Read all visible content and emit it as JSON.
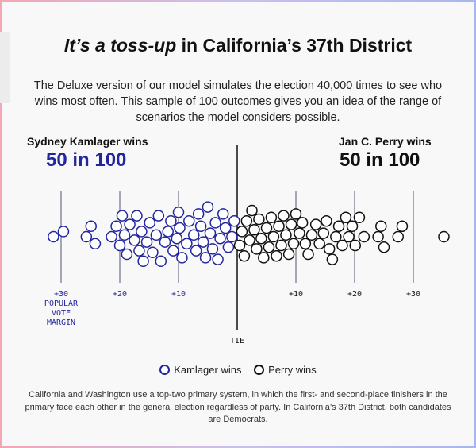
{
  "title_emph": "It’s a toss-up",
  "title_rest": " in California’s 37th District",
  "subtitle": "The Deluxe version of our model simulates the election 40,000 times to see who wins most often. This sample of 100 outcomes gives you an idea of the range of scenarios the model considers possible.",
  "left": {
    "label": "Sydney Kamlager wins",
    "count": "50 in 100"
  },
  "right": {
    "label": "Jan C. Perry wins",
    "count": "50 in 100"
  },
  "colors": {
    "kamlager": "#22279f",
    "perry": "#111111",
    "gridline": "#555577"
  },
  "legend": {
    "kamlager": "Kamlager wins",
    "perry": "Perry wins"
  },
  "footnote": "California and Washington use a top-two primary system, in which the first- and second-place finishers in the primary face each other in the general election regardless of party. In California’s 37th District, both candidates are Democrats.",
  "chart_data": {
    "type": "scatter",
    "title": "",
    "xlabel": "POPULAR VOTE MARGIN",
    "xlim": [
      -30,
      30
    ],
    "ticks": [
      {
        "value": -30,
        "label": "+30"
      },
      {
        "value": -20,
        "label": "+20"
      },
      {
        "value": -10,
        "label": "+10"
      },
      {
        "value": 10,
        "label": "+10"
      },
      {
        "value": 20,
        "label": "+20"
      },
      {
        "value": 30,
        "label": "+30"
      }
    ],
    "axis_title_lines": [
      "POPULAR",
      "VOTE",
      "MARGIN"
    ],
    "center_label": "TIE",
    "series": [
      {
        "name": "Kamlager wins",
        "values": [
          -31.3,
          -29.6,
          -25.7,
          -24.9,
          -24.2,
          -21.4,
          -20.6,
          -20.0,
          -19.6,
          -19.2,
          -18.8,
          -18.3,
          -17.5,
          -17.1,
          -16.7,
          -16.3,
          -16.0,
          -15.4,
          -14.9,
          -14.4,
          -13.8,
          -13.4,
          -13.0,
          -12.3,
          -11.8,
          -11.3,
          -10.9,
          -10.3,
          -10.0,
          -9.8,
          -9.4,
          -8.6,
          -8.2,
          -7.4,
          -7.0,
          -6.6,
          -6.2,
          -5.8,
          -5.4,
          -5.0,
          -4.6,
          -4.2,
          -3.7,
          -3.3,
          -2.9,
          -2.4,
          -2.0,
          -1.5,
          -0.9,
          -0.5
        ]
      },
      {
        "name": "Perry wins",
        "values": [
          0.4,
          0.8,
          1.2,
          1.6,
          2.1,
          2.5,
          2.9,
          3.3,
          3.7,
          4.1,
          4.5,
          5.0,
          5.4,
          5.8,
          6.2,
          6.7,
          7.1,
          7.5,
          7.9,
          8.3,
          8.8,
          9.2,
          9.6,
          10.0,
          10.6,
          11.1,
          11.6,
          12.1,
          12.7,
          13.4,
          14.0,
          14.7,
          15.2,
          15.7,
          16.2,
          16.8,
          17.3,
          17.9,
          18.5,
          19.0,
          19.6,
          20.1,
          20.8,
          21.6,
          24.0,
          24.5,
          25.0,
          27.4,
          28.1,
          35.2
        ]
      }
    ]
  }
}
